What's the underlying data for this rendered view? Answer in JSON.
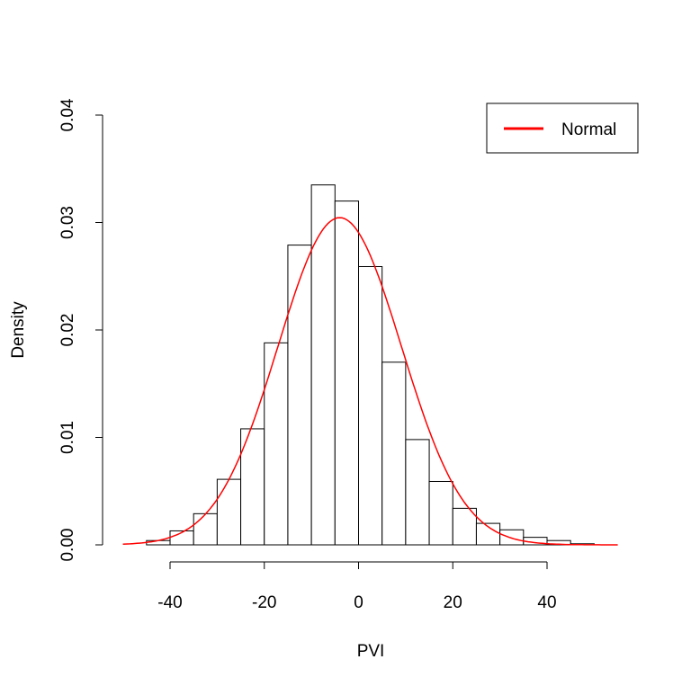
{
  "chart_data": {
    "type": "bar",
    "subtype": "histogram-with-density-curve",
    "title": "",
    "xlabel": "PVI",
    "ylabel": "Density",
    "xlim": [
      -50,
      55
    ],
    "ylim": [
      0,
      0.04
    ],
    "x_ticks": [
      -40,
      -20,
      0,
      20,
      40
    ],
    "x_tick_labels": [
      "-40",
      "-20",
      "0",
      "20",
      "40"
    ],
    "y_ticks": [
      0,
      0.01,
      0.02,
      0.03,
      0.04
    ],
    "y_tick_labels": [
      "0.00",
      "0.01",
      "0.02",
      "0.03",
      "0.04"
    ],
    "grid": false,
    "bins": [
      {
        "start": -45,
        "end": -40,
        "density": 0.0004
      },
      {
        "start": -40,
        "end": -35,
        "density": 0.0013
      },
      {
        "start": -35,
        "end": -30,
        "density": 0.0029
      },
      {
        "start": -30,
        "end": -25,
        "density": 0.0061
      },
      {
        "start": -25,
        "end": -20,
        "density": 0.0108
      },
      {
        "start": -20,
        "end": -15,
        "density": 0.0188
      },
      {
        "start": -15,
        "end": -10,
        "density": 0.0279
      },
      {
        "start": -10,
        "end": -5,
        "density": 0.0335
      },
      {
        "start": -5,
        "end": 0,
        "density": 0.032
      },
      {
        "start": 0,
        "end": 5,
        "density": 0.0259
      },
      {
        "start": 5,
        "end": 10,
        "density": 0.017
      },
      {
        "start": 10,
        "end": 15,
        "density": 0.0098
      },
      {
        "start": 15,
        "end": 20,
        "density": 0.0059
      },
      {
        "start": 20,
        "end": 25,
        "density": 0.0034
      },
      {
        "start": 25,
        "end": 30,
        "density": 0.002
      },
      {
        "start": 30,
        "end": 35,
        "density": 0.0014
      },
      {
        "start": 35,
        "end": 40,
        "density": 0.0007
      },
      {
        "start": 40,
        "end": 45,
        "density": 0.0004
      },
      {
        "start": 45,
        "end": 50,
        "density": 0.0001
      }
    ],
    "bar_fill": "#ffffff",
    "bar_stroke": "#000000",
    "curve": {
      "name": "Normal",
      "distribution": "normal",
      "mean": -4,
      "sd": 13.1,
      "x_range": [
        -50,
        55
      ],
      "color": "#ff0000"
    },
    "legend": {
      "position": "top-right",
      "entries": [
        {
          "label": "Normal",
          "color": "#ff0000"
        }
      ]
    }
  }
}
